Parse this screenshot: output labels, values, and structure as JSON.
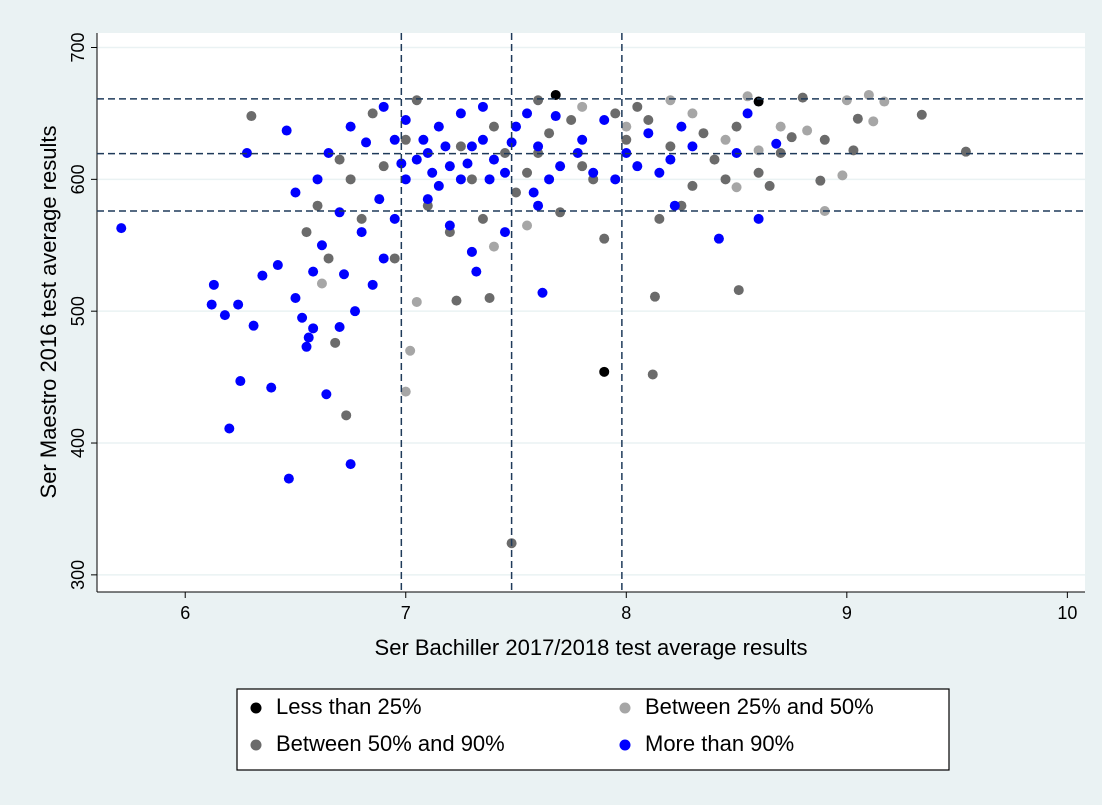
{
  "chart_data": {
    "type": "scatter",
    "x_label": "Ser Bachiller 2017/2018 test average results",
    "y_label": "Ser Maestro 2016 test average results",
    "xlim": [
      5.6,
      10.08
    ],
    "ylim": [
      287,
      711
    ],
    "xticks": [
      6,
      7,
      8,
      9,
      10
    ],
    "yticks": [
      300,
      400,
      500,
      600,
      700
    ],
    "grid": true,
    "reference_lines": {
      "x": [
        6.98,
        7.48,
        7.98
      ],
      "y": [
        661,
        619.5,
        576
      ]
    },
    "series": [
      {
        "name": "Less than 25%",
        "color": "#000000",
        "x": [
          7.68,
          8.6,
          7.9
        ],
        "values": [
          664,
          659,
          454
        ]
      },
      {
        "name": "Between 25% and 50%",
        "color": "#a6a6a6",
        "x": [
          7.0,
          7.02,
          8.9,
          9.12,
          9.17,
          9.1,
          8.98,
          8.55,
          6.62,
          7.05,
          7.4,
          7.3,
          7.55,
          8.5,
          8.0,
          8.3,
          8.7,
          8.82,
          7.8,
          8.6,
          8.2,
          8.45,
          9.0
        ],
        "values": [
          439,
          470,
          576,
          644,
          659,
          664,
          603,
          663,
          521,
          507,
          549,
          545,
          565,
          594,
          640,
          650,
          640,
          637,
          655,
          622,
          660,
          630,
          660
        ]
      },
      {
        "name": "Between 50% and 90%",
        "color": "#6b6b6b",
        "x": [
          7.48,
          6.73,
          8.12,
          8.13,
          8.51,
          9.54,
          9.34,
          9.03,
          9.05,
          6.3,
          6.68,
          7.38,
          7.23,
          6.95,
          7.2,
          7.6,
          7.8,
          8.0,
          8.2,
          8.4,
          8.6,
          8.75,
          8.88,
          8.8,
          8.9,
          7.3,
          7.5,
          7.7,
          7.9,
          8.3,
          8.5,
          8.1,
          7.0,
          6.9,
          6.6,
          6.8,
          6.75,
          7.4,
          7.6,
          7.95,
          8.25,
          8.65,
          6.7,
          7.1,
          7.25,
          7.85,
          8.05,
          8.35,
          8.7,
          7.55,
          6.85,
          7.05,
          7.65,
          8.15,
          8.45,
          7.35,
          7.75,
          6.55,
          6.65,
          7.45
        ],
        "values": [
          324,
          421,
          452,
          511,
          516,
          621,
          649,
          622,
          646,
          648,
          476,
          510,
          508,
          540,
          560,
          620,
          610,
          630,
          625,
          615,
          605,
          632,
          599,
          662,
          630,
          600,
          590,
          575,
          555,
          595,
          640,
          645,
          630,
          610,
          580,
          570,
          600,
          640,
          660,
          650,
          580,
          595,
          615,
          580,
          625,
          600,
          655,
          635,
          620,
          605,
          650,
          660,
          635,
          570,
          600,
          570,
          645,
          560,
          540,
          620
        ]
      },
      {
        "name": "More than 90%",
        "color": "#0000ff",
        "x": [
          5.71,
          6.13,
          6.12,
          6.18,
          6.2,
          6.25,
          6.24,
          6.31,
          6.35,
          6.39,
          6.42,
          6.47,
          6.5,
          6.53,
          6.55,
          6.56,
          6.58,
          6.64,
          6.7,
          6.75,
          6.77,
          6.72,
          6.46,
          6.28,
          6.6,
          6.5,
          6.8,
          6.9,
          6.85,
          7.0,
          7.1,
          7.2,
          7.3,
          7.15,
          7.05,
          6.95,
          7.25,
          7.35,
          7.4,
          7.5,
          7.6,
          7.7,
          7.8,
          7.9,
          8.0,
          8.1,
          8.2,
          8.3,
          8.42,
          8.6,
          8.68,
          7.62,
          7.45,
          7.3,
          7.2,
          7.1,
          6.75,
          6.9,
          7.0,
          7.15,
          7.25,
          7.45,
          7.55,
          7.65,
          7.85,
          7.95,
          8.15,
          8.25,
          8.5,
          8.55,
          6.65,
          6.7,
          6.62,
          6.88,
          7.08,
          7.18,
          7.28,
          7.38,
          7.48,
          7.58,
          7.68,
          7.78,
          6.98,
          7.12,
          6.82,
          6.58,
          6.95,
          7.35,
          8.05,
          8.22,
          7.32,
          7.6
        ],
        "values": [
          563,
          520,
          505,
          497,
          411,
          447,
          505,
          489,
          527,
          442,
          535,
          373,
          510,
          495,
          473,
          480,
          487,
          437,
          488,
          384,
          500,
          528,
          637,
          620,
          600,
          590,
          560,
          540,
          520,
          600,
          620,
          610,
          625,
          640,
          615,
          630,
          600,
          630,
          615,
          640,
          625,
          610,
          630,
          645,
          620,
          635,
          615,
          625,
          555,
          570,
          627,
          514,
          560,
          545,
          565,
          585,
          640,
          655,
          645,
          595,
          650,
          605,
          650,
          600,
          605,
          600,
          605,
          640,
          620,
          650,
          620,
          575,
          550,
          585,
          630,
          625,
          612,
          600,
          628,
          590,
          648,
          620,
          612,
          605,
          628,
          530,
          570,
          655,
          610,
          580,
          530,
          580
        ]
      }
    ]
  }
}
